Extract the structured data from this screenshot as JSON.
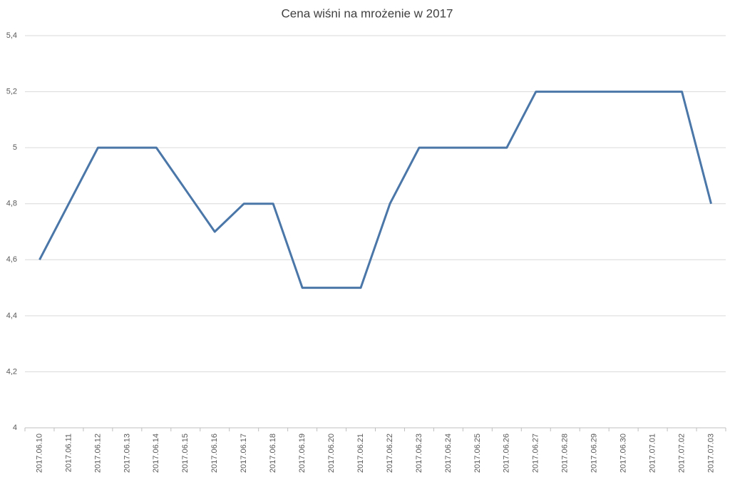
{
  "chart_data": {
    "type": "line",
    "title": "Cena wiśni na mrożenie w 2017",
    "categories": [
      "2017.06.10",
      "2017.06.11",
      "2017.06.12",
      "2017.06.13",
      "2017.06.14",
      "2017.06.15",
      "2017.06.16",
      "2017.06.17",
      "2017.06.18",
      "2017.06.19",
      "2017.06.20",
      "2017.06.21",
      "2017.06.22",
      "2017.06.23",
      "2017.06.24",
      "2017.06.25",
      "2017.06.26",
      "2017.06.27",
      "2017.06.28",
      "2017.06.29",
      "2017.06.30",
      "2017.07.01",
      "2017.07.02",
      "2017.07.03"
    ],
    "values": [
      4.6,
      4.8,
      5.0,
      5.0,
      5.0,
      4.85,
      4.7,
      4.8,
      4.8,
      4.5,
      4.5,
      4.5,
      4.8,
      5.0,
      5.0,
      5.0,
      5.0,
      5.2,
      5.2,
      5.2,
      5.2,
      5.2,
      5.2,
      4.8
    ],
    "color": "#4a76a8",
    "ylim": [
      4,
      5.4
    ],
    "yticks": [
      4,
      {
        "value": 4.2,
        "label": "4,2"
      },
      {
        "value": 4.4,
        "label": "4,4"
      },
      {
        "value": 4.6,
        "label": "4,6"
      },
      {
        "value": 4.8,
        "label": "4,8"
      },
      5,
      {
        "value": 5.2,
        "label": "5,2"
      },
      {
        "value": 5.4,
        "label": "5,4"
      }
    ],
    "grid": true
  }
}
